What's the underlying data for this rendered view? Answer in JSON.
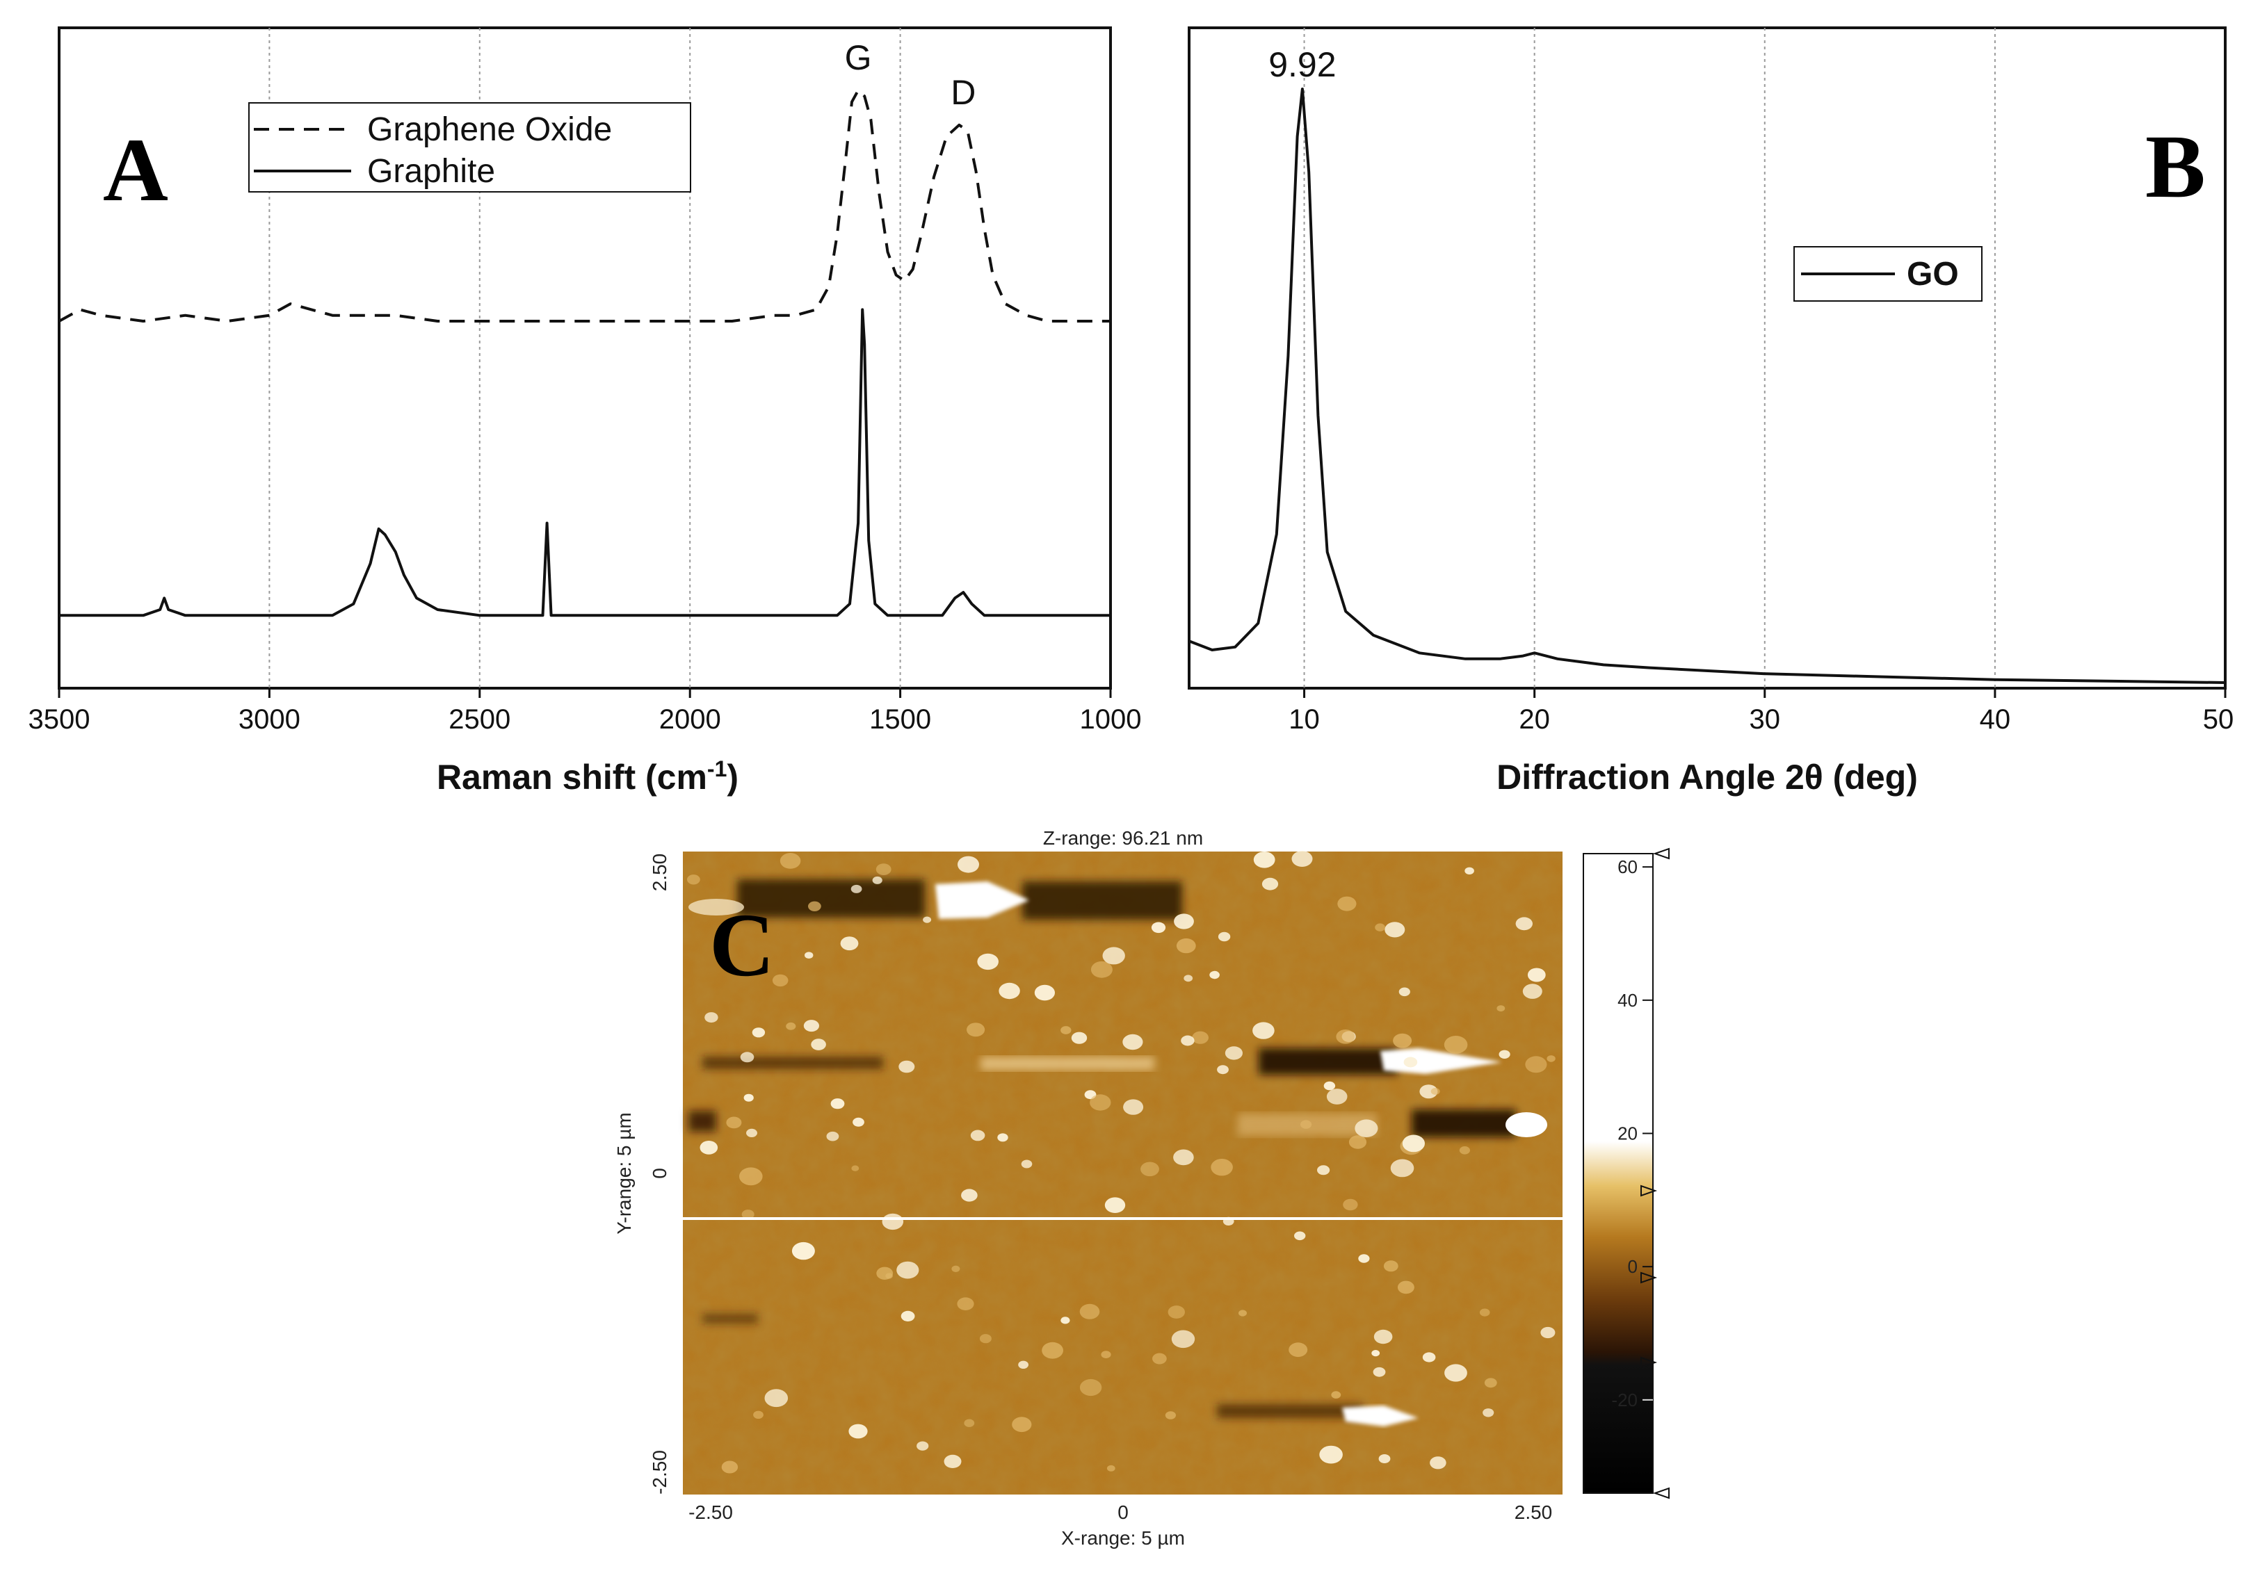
{
  "chart_data": [
    {
      "panel": "A",
      "type": "line",
      "xlabel": "Raman shift (cm",
      "xlabel_sup": "-1",
      "xlabel_end": ")",
      "xlim": [
        3500,
        1000
      ],
      "xticks": [
        "3500",
        "3000",
        "2500",
        "2000",
        "1500",
        "1000"
      ],
      "grid": "vertical dotted",
      "legend_position": "top-left",
      "peak_labels": [
        {
          "text": "G",
          "x": 1600
        },
        {
          "text": "D",
          "x": 1350
        }
      ],
      "series": [
        {
          "name": "Graphene Oxide",
          "style": "dashed",
          "points": [
            [
              3500,
              0.6
            ],
            [
              3450,
              0.62
            ],
            [
              3400,
              0.61
            ],
            [
              3300,
              0.6
            ],
            [
              3200,
              0.61
            ],
            [
              3100,
              0.6
            ],
            [
              3000,
              0.61
            ],
            [
              2950,
              0.63
            ],
            [
              2900,
              0.62
            ],
            [
              2850,
              0.61
            ],
            [
              2800,
              0.61
            ],
            [
              2700,
              0.61
            ],
            [
              2600,
              0.6
            ],
            [
              2500,
              0.6
            ],
            [
              2400,
              0.6
            ],
            [
              2300,
              0.6
            ],
            [
              2200,
              0.6
            ],
            [
              2100,
              0.6
            ],
            [
              2000,
              0.6
            ],
            [
              1900,
              0.6
            ],
            [
              1800,
              0.61
            ],
            [
              1750,
              0.61
            ],
            [
              1700,
              0.62
            ],
            [
              1670,
              0.66
            ],
            [
              1650,
              0.75
            ],
            [
              1630,
              0.88
            ],
            [
              1615,
              0.98
            ],
            [
              1600,
              1.0
            ],
            [
              1585,
              0.99
            ],
            [
              1570,
              0.95
            ],
            [
              1550,
              0.82
            ],
            [
              1530,
              0.72
            ],
            [
              1510,
              0.68
            ],
            [
              1490,
              0.67
            ],
            [
              1470,
              0.69
            ],
            [
              1450,
              0.75
            ],
            [
              1420,
              0.85
            ],
            [
              1390,
              0.92
            ],
            [
              1360,
              0.94
            ],
            [
              1340,
              0.93
            ],
            [
              1320,
              0.86
            ],
            [
              1300,
              0.76
            ],
            [
              1280,
              0.68
            ],
            [
              1250,
              0.63
            ],
            [
              1200,
              0.61
            ],
            [
              1150,
              0.6
            ],
            [
              1100,
              0.6
            ],
            [
              1000,
              0.6
            ]
          ]
        },
        {
          "name": "Graphite",
          "style": "solid",
          "points": [
            [
              3500,
              0.09
            ],
            [
              3300,
              0.09
            ],
            [
              3260,
              0.1
            ],
            [
              3250,
              0.12
            ],
            [
              3240,
              0.1
            ],
            [
              3200,
              0.09
            ],
            [
              3000,
              0.09
            ],
            [
              2850,
              0.09
            ],
            [
              2800,
              0.11
            ],
            [
              2760,
              0.18
            ],
            [
              2740,
              0.24
            ],
            [
              2725,
              0.23
            ],
            [
              2700,
              0.2
            ],
            [
              2680,
              0.16
            ],
            [
              2650,
              0.12
            ],
            [
              2600,
              0.1
            ],
            [
              2500,
              0.09
            ],
            [
              2350,
              0.09
            ],
            [
              2340,
              0.25
            ],
            [
              2330,
              0.09
            ],
            [
              2200,
              0.09
            ],
            [
              2000,
              0.09
            ],
            [
              1800,
              0.09
            ],
            [
              1650,
              0.09
            ],
            [
              1620,
              0.11
            ],
            [
              1600,
              0.25
            ],
            [
              1590,
              0.62
            ],
            [
              1585,
              0.56
            ],
            [
              1575,
              0.22
            ],
            [
              1560,
              0.11
            ],
            [
              1530,
              0.09
            ],
            [
              1400,
              0.09
            ],
            [
              1370,
              0.12
            ],
            [
              1350,
              0.13
            ],
            [
              1330,
              0.11
            ],
            [
              1300,
              0.09
            ],
            [
              1000,
              0.09
            ]
          ]
        }
      ]
    },
    {
      "panel": "B",
      "type": "line",
      "xlabel": "Diffraction Angle 2θ (deg)",
      "xlim": [
        5,
        50
      ],
      "xticks": [
        "10",
        "20",
        "30",
        "40",
        "50"
      ],
      "grid": "vertical dotted",
      "legend_position": "top-right",
      "annotations": [
        {
          "text": "9.92",
          "x": 9.92
        }
      ],
      "series": [
        {
          "name": "GO",
          "style": "solid",
          "points": [
            [
              5,
              0.07
            ],
            [
              6,
              0.055
            ],
            [
              7,
              0.06
            ],
            [
              8,
              0.1
            ],
            [
              8.8,
              0.25
            ],
            [
              9.3,
              0.55
            ],
            [
              9.7,
              0.92
            ],
            [
              9.92,
              1.0
            ],
            [
              10.2,
              0.86
            ],
            [
              10.6,
              0.45
            ],
            [
              11,
              0.22
            ],
            [
              11.8,
              0.12
            ],
            [
              13,
              0.08
            ],
            [
              15,
              0.05
            ],
            [
              17,
              0.04
            ],
            [
              18.5,
              0.04
            ],
            [
              19.5,
              0.045
            ],
            [
              20,
              0.05
            ],
            [
              21,
              0.04
            ],
            [
              23,
              0.03
            ],
            [
              25,
              0.025
            ],
            [
              30,
              0.015
            ],
            [
              35,
              0.01
            ],
            [
              40,
              0.005
            ],
            [
              50,
              0.0
            ]
          ]
        }
      ]
    },
    {
      "panel": "C",
      "type": "heatmap",
      "title": "Z-range: 96.21 nm",
      "xlabel": "X-range: 5 µm",
      "ylabel": "Y-range: 5 µm",
      "xticks": [
        "-2.50",
        "0",
        "2.50"
      ],
      "yticks": [
        "2.50",
        "0",
        "-2.50"
      ],
      "colorbar_ticks": [
        "60",
        "40",
        "20",
        "0",
        "-20"
      ],
      "colorbar_range": [
        -34,
        62
      ]
    }
  ],
  "labels": {
    "panel_a": "A",
    "panel_b": "B",
    "panel_c": "C"
  },
  "colors": {
    "line": "#111111",
    "grid": "#9a9a9a",
    "afm_mid": "#b5791f",
    "afm_dark": "#2a1406",
    "afm_light": "#ffffff"
  }
}
